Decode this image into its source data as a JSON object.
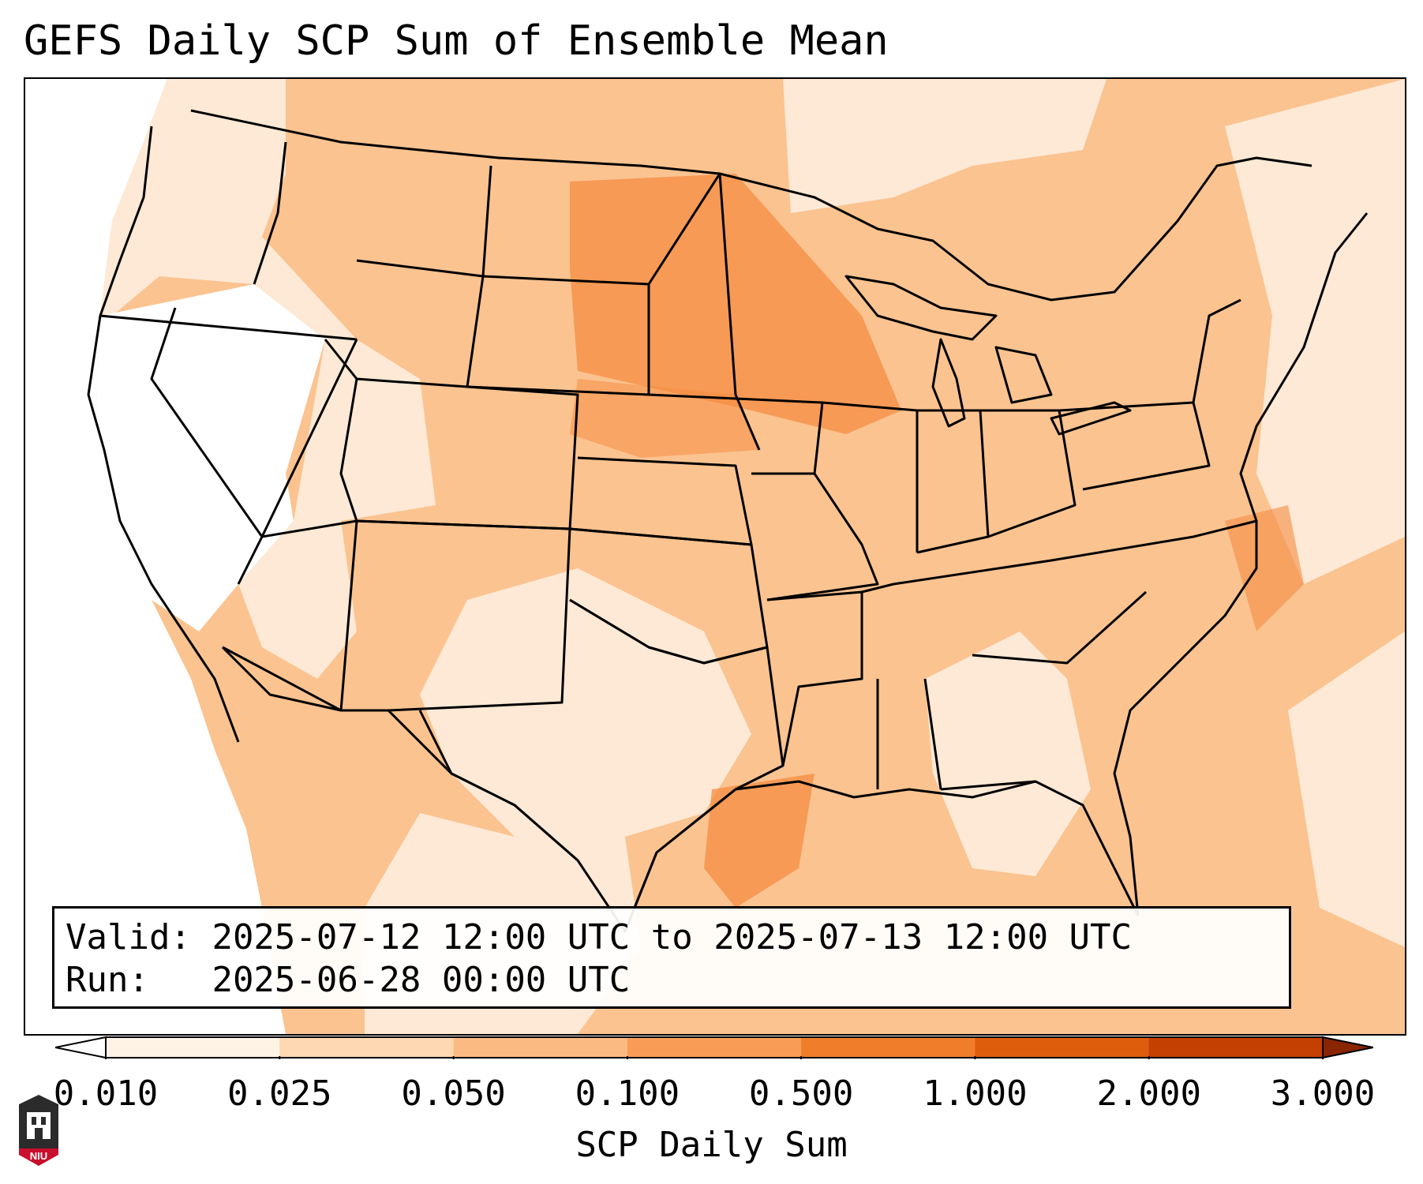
{
  "title": "GEFS Daily SCP Sum of Ensemble Mean",
  "info": {
    "valid_label": "Valid:",
    "valid_value": "2025-07-12 12:00 UTC to 2025-07-13 12:00 UTC",
    "run_label": "Run:",
    "run_value": "2025-06-28 00:00 UTC"
  },
  "colorbar": {
    "label": "SCP Daily Sum",
    "ticks": [
      "0.010",
      "0.025",
      "0.050",
      "0.100",
      "0.500",
      "1.000",
      "2.000",
      "3.000"
    ],
    "colors": [
      "#fff3e6",
      "#fdd8b3",
      "#fcba83",
      "#f99c56",
      "#f07d2a",
      "#de5d0c",
      "#c43f02"
    ],
    "under_color": "#ffffff",
    "over_color": "#8a2502"
  },
  "logo": {
    "text": "NIU",
    "icon": "niu-castle-icon"
  },
  "map": {
    "region": "Contiguous United States",
    "fill_colors": {
      "none": "#ffffff",
      "very_light": "#fde9d5",
      "light": "#fbc390",
      "medium": "#f9ae6b",
      "strong": "#f58c42"
    }
  }
}
